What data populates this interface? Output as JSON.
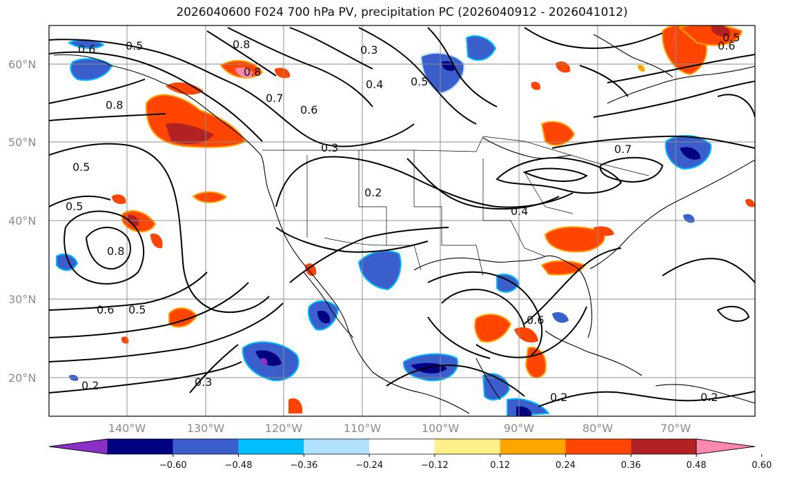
{
  "title": "2026040600 F024 700 hPa PV, precipitation PC (2026040912 - 2026041012)",
  "latitude_labels": [
    "60°N",
    "50°N",
    "40°N",
    "30°N",
    "20°N"
  ],
  "longitude_labels": [
    "140°W",
    "130°W",
    "120°W",
    "110°W",
    "100°W",
    "90°W",
    "80°W",
    "70°W"
  ],
  "contour_labels": [
    "0.6",
    "0.5",
    "0.8",
    "0.8",
    "0.3",
    "0.4",
    "0.5",
    "0.7",
    "0.6",
    "0.8",
    "0.5",
    "0.5",
    "0.8",
    "0.6",
    "0.5",
    "0.3",
    "0.2",
    "0.4",
    "0.7",
    "0.2",
    "0.6",
    "0.3",
    "0.2",
    "0.2",
    "0.5",
    "0.6"
  ],
  "colorbar": {
    "tick_labels": [
      "−0.60",
      "−0.48",
      "−0.36",
      "−0.24",
      "−0.12",
      "0.12",
      "0.24",
      "0.36",
      "0.48",
      "0.60"
    ],
    "colors": [
      "#8b2fc9",
      "#000080",
      "#3a5fcd",
      "#00bfff",
      "#b0e2ff",
      "#ffffff",
      "#fff08a",
      "#ffa500",
      "#ff4500",
      "#b22222",
      "#ff88b0"
    ]
  },
  "colors": {
    "contour": "#000000",
    "coast": "#000000",
    "grid": "#8c8c8c",
    "label_gray": "#8a8a8a"
  }
}
